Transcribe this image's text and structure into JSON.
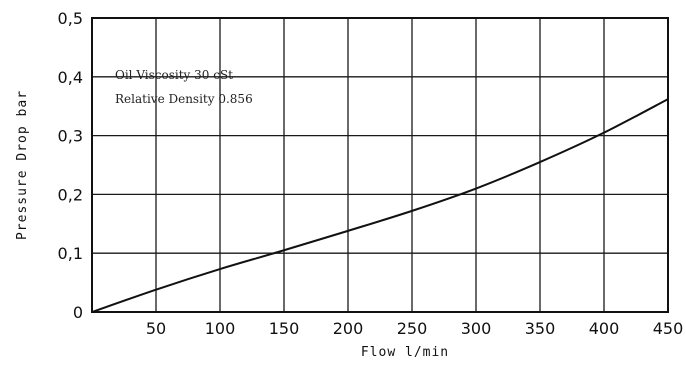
{
  "chart_data": {
    "type": "line",
    "title": "",
    "xlabel": "Flow l/min",
    "ylabel": "Pressure Drop bar",
    "xlim": [
      0,
      450
    ],
    "ylim": [
      0,
      0.5
    ],
    "x_ticks": [
      50,
      100,
      150,
      200,
      250,
      300,
      350,
      400,
      450
    ],
    "x_tick_labels": [
      "50",
      "100",
      "150",
      "200",
      "250",
      "300",
      "350",
      "400",
      "450"
    ],
    "y_ticks": [
      0,
      0.1,
      0.2,
      0.3,
      0.4,
      0.5
    ],
    "y_tick_labels": [
      "0",
      "0,1",
      "0,2",
      "0,3",
      "0,4",
      "0,5"
    ],
    "grid": true,
    "annotations": [
      "Oil Viscosity 30 cSt",
      "Relative Density 0.856"
    ],
    "series": [
      {
        "x": [
          0,
          50,
          100,
          150,
          200,
          250,
          300,
          350,
          400,
          450
        ],
        "values": [
          0.0,
          0.038,
          0.073,
          0.105,
          0.138,
          0.172,
          0.21,
          0.255,
          0.305,
          0.362
        ]
      }
    ]
  }
}
